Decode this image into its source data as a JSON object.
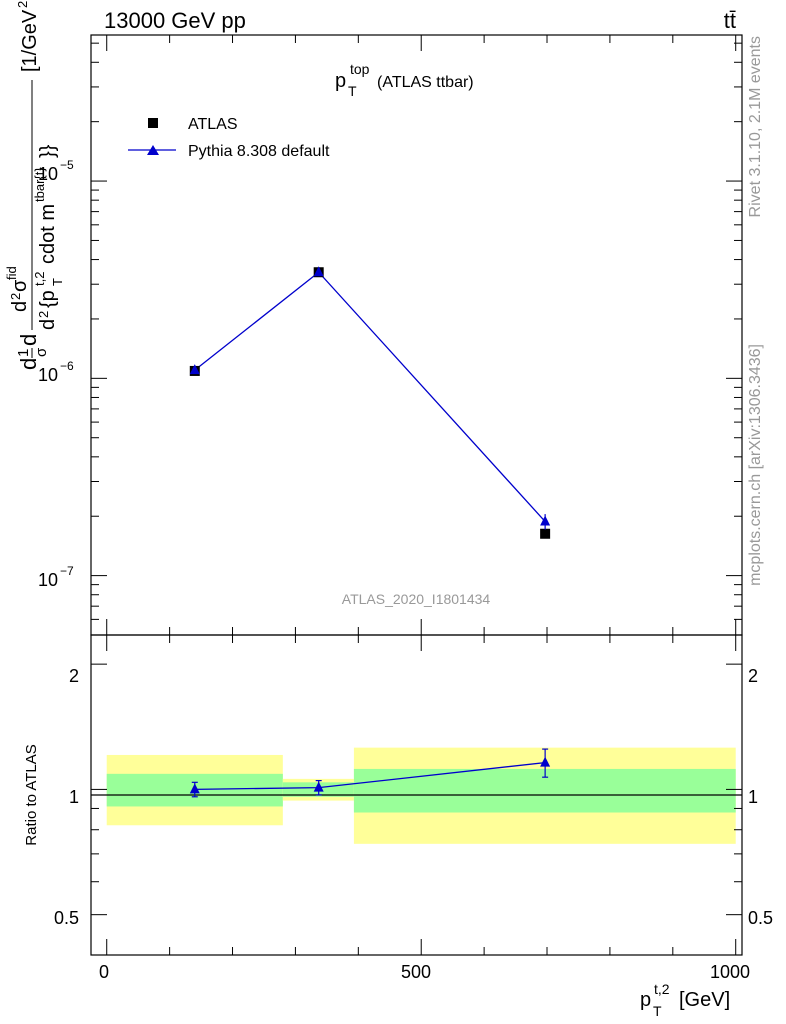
{
  "header": {
    "beam_label": "13000 GeV pp",
    "process_label": "tt̄"
  },
  "side_labels": {
    "rivet_version": "Rivet 3.1.10,  2.1M events",
    "source": "mcplots.cern.ch [arXiv:1306.3436]"
  },
  "colors": {
    "atlas": "#000000",
    "pythia": "#0000cc",
    "band_outer": "#ffff99",
    "band_inner": "#99ff99",
    "watermark": "#999999"
  },
  "chart_data": [
    {
      "type": "scatter",
      "title": "p_T^top (ATLAS ttbar)",
      "ylabel": "d1/σ dσ^{fid} / d^2 {p_T^{t,2} cdot m^{tbar{t}}} [1/GeV^2]",
      "xlabel": "",
      "yscale": "log",
      "ylim": [
        5e-08,
        5.5e-05
      ],
      "xlim": [
        -25,
        1010
      ],
      "y_ticks": [
        "10^-7",
        "10^-6",
        "10^-5"
      ],
      "watermark": "ATLAS_2020_I1801434",
      "legend_position": "top-left",
      "series": [
        {
          "name": "ATLAS",
          "marker": "square",
          "x": [
            140,
            337,
            697
          ],
          "y": [
            1.09e-06,
            3.45e-06,
            1.63e-07
          ],
          "x_bins": [
            [
              0,
              280
            ],
            [
              280,
              393
            ],
            [
              393,
              1000
            ]
          ]
        },
        {
          "name": "Pythia 8.308 default",
          "marker": "triangle",
          "x": [
            140,
            337,
            697
          ],
          "y": [
            1.1e-06,
            3.45e-06,
            1.88e-07
          ],
          "y_err": [
            4e-08,
            1e-07,
            1.7e-08
          ]
        }
      ]
    },
    {
      "type": "line",
      "ylabel": "Ratio to ATLAS",
      "xlabel": "p_T^{t,2} [GeV]",
      "ylim": [
        0.4,
        2.35
      ],
      "xlim": [
        -25,
        1010
      ],
      "y_ticks": [
        "0.5",
        "1",
        "2"
      ],
      "x_ticks": [
        "0",
        "500",
        "1000"
      ],
      "bands": [
        {
          "x": [
            0,
            280
          ],
          "inner": [
            0.91,
            1.09
          ],
          "outer": [
            0.82,
            1.21
          ]
        },
        {
          "x": [
            280,
            393
          ],
          "inner": [
            0.96,
            1.04
          ],
          "outer": [
            0.94,
            1.06
          ]
        },
        {
          "x": [
            393,
            1000
          ],
          "inner": [
            0.88,
            1.12
          ],
          "outer": [
            0.74,
            1.26
          ]
        }
      ],
      "series": [
        {
          "name": "Pythia 8.308 default",
          "x": [
            140,
            337,
            697
          ],
          "y": [
            1.0,
            1.01,
            1.16
          ],
          "y_err": [
            0.04,
            0.04,
            0.09
          ]
        }
      ]
    }
  ]
}
